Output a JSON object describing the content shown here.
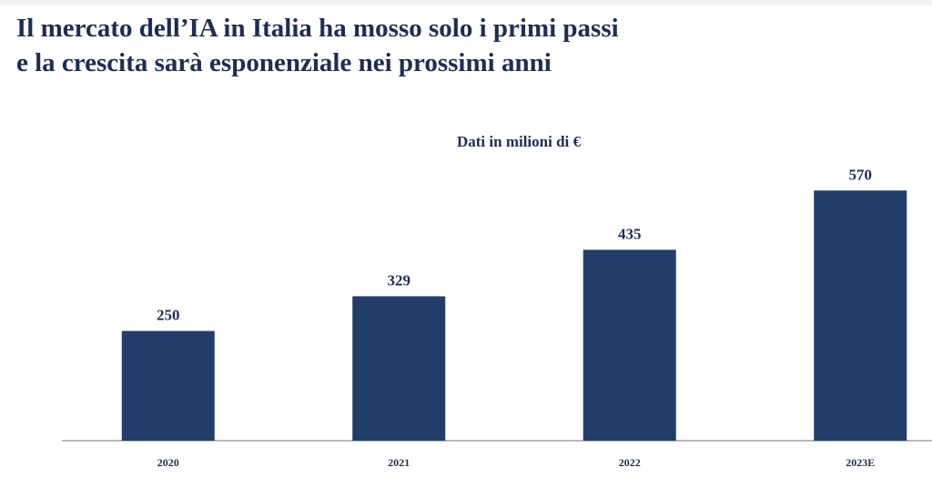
{
  "header": {
    "title_line_1": "Il mercato dell’IA in Italia ha mosso solo i primi passi",
    "title_line_2": "e la crescita sarà esponenziale nei prossimi anni"
  },
  "colors": {
    "title": "#1f2d55",
    "bar": "#213e6a",
    "axis": "#8c8c8c",
    "background": "#ffffff"
  },
  "chart_data": {
    "type": "bar",
    "title": "Dati in milioni di €",
    "xlabel": "",
    "ylabel": "",
    "categories": [
      "2020",
      "2021",
      "2022",
      "2023E"
    ],
    "values": [
      250,
      329,
      435,
      570
    ],
    "data_labels": [
      "250",
      "329",
      "435",
      "570"
    ],
    "ylim": [
      0,
      600
    ],
    "grid": false,
    "legend": "none"
  }
}
